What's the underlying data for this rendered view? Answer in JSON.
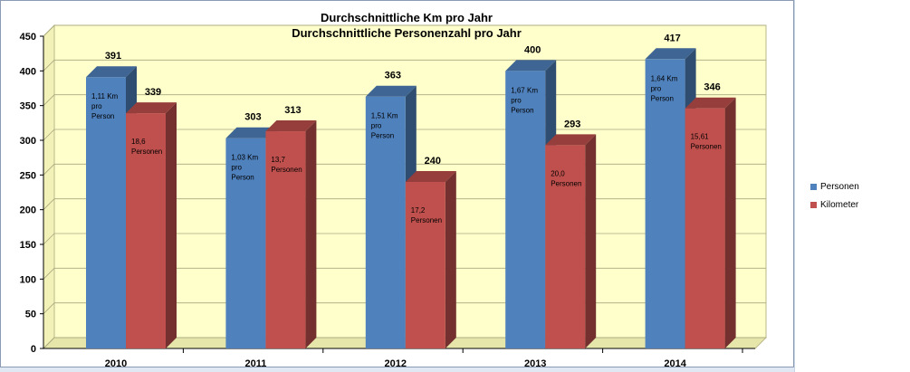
{
  "chart_data": {
    "type": "bar",
    "title": [
      "Durchschnittliche Km pro Jahr",
      "Durchschnittliche Personenzahl pro Jahr"
    ],
    "categories": [
      "2010",
      "2011",
      "2012",
      "2013",
      "2014"
    ],
    "series": [
      {
        "name": "Personen",
        "color": "#4f81bd",
        "values": [
          391,
          303,
          363,
          400,
          417
        ],
        "annotations": [
          [
            "1,11 Km",
            "pro",
            "Person"
          ],
          [
            "1,03 Km",
            "pro",
            "Person"
          ],
          [
            "1,51 Km",
            "pro",
            "Person"
          ],
          [
            "1,67 Km",
            "pro",
            "Person"
          ],
          [
            "1,64 Km",
            "pro",
            "Person"
          ]
        ]
      },
      {
        "name": "Kilometer",
        "color": "#c0504d",
        "values": [
          339,
          313,
          240,
          293,
          346
        ],
        "annotations": [
          [
            "18,6",
            "Personen"
          ],
          [
            "13,7",
            "Personen"
          ],
          [
            "17,2",
            "Personen"
          ],
          [
            "20,0",
            "Personen"
          ],
          [
            "15,61",
            "Personen"
          ]
        ]
      }
    ],
    "ylim": [
      0,
      450
    ],
    "yticks": [
      0,
      50,
      100,
      150,
      200,
      250,
      300,
      350,
      400,
      450
    ],
    "grid": true,
    "legend": "right",
    "background": "#ffffcc"
  },
  "legend": {
    "items": [
      {
        "label": "Personen",
        "color": "#4f81bd"
      },
      {
        "label": "Kilometer",
        "color": "#c0504d"
      }
    ]
  }
}
